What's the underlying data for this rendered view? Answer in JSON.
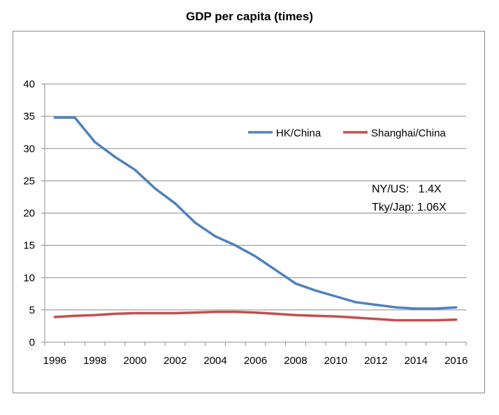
{
  "chart_data": {
    "type": "line",
    "title": "GDP per capita (times)",
    "xlabel": "",
    "ylabel": "",
    "ylim": [
      0,
      40
    ],
    "xlim": [
      1995.5,
      2016.5
    ],
    "y_ticks": [
      0,
      5,
      10,
      15,
      20,
      25,
      30,
      35,
      40
    ],
    "x_ticks": [
      1996,
      1998,
      2000,
      2002,
      2004,
      2006,
      2008,
      2010,
      2012,
      2014,
      2016
    ],
    "grid": true,
    "legend_position": "top-right",
    "x": [
      1996,
      1997,
      1998,
      1999,
      2000,
      2001,
      2002,
      2003,
      2004,
      2005,
      2006,
      2007,
      2008,
      2009,
      2010,
      2011,
      2012,
      2013,
      2014,
      2015,
      2016
    ],
    "series": [
      {
        "name": "HK/China",
        "color": "#4f81bd",
        "values": [
          34.8,
          34.8,
          31.0,
          28.7,
          26.7,
          23.8,
          21.5,
          18.5,
          16.4,
          15.0,
          13.3,
          11.2,
          9.1,
          8.0,
          7.1,
          6.2,
          5.8,
          5.4,
          5.2,
          5.2,
          5.4
        ]
      },
      {
        "name": "Shanghai/China",
        "color": "#c0504d",
        "values": [
          3.9,
          4.1,
          4.2,
          4.4,
          4.5,
          4.5,
          4.5,
          4.6,
          4.7,
          4.7,
          4.6,
          4.4,
          4.2,
          4.1,
          4.0,
          3.8,
          3.6,
          3.4,
          3.4,
          3.4,
          3.5
        ]
      }
    ],
    "annotations": [
      "NY/US:   1.4X",
      "Tky/Jap: 1.06X"
    ]
  }
}
